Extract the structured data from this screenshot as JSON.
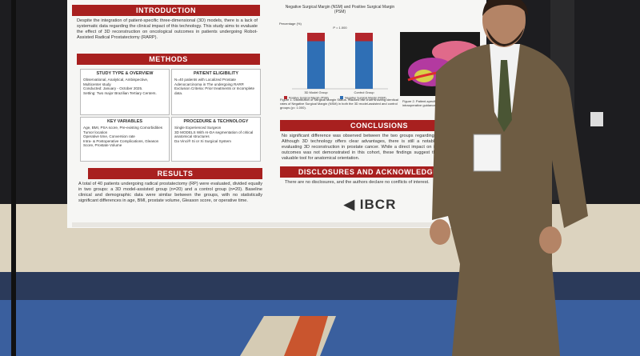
{
  "poster": {
    "introduction": {
      "heading": "INTRODUCTION",
      "text": "Despite the integration of patient-specific three-dimensional (3D) models, there is a lack of systematic data regarding the clinical impact of this technology. This study aims to evaluate the effect of 3D reconstruction on oncological outcomes in patients undergoing Robot-Assisted Radical Prostatectomy (RARP)."
    },
    "methods": {
      "heading": "METHODS",
      "boxes": [
        {
          "title": "STUDY TYPE & OVERVIEW",
          "lines": [
            "Observational, Analytical, Ambispective, Multicenter study",
            "Conducted: January - October 2025.",
            "Setting: Two major Brazilian Tertiary Centers."
          ]
        },
        {
          "title": "PATIENT ELIGIBILITY",
          "lines": [
            "N=40 patients with Localized Prostate Adenocarcinoma in The undergoing RARP.",
            "Exclusion Criteria: Prior treatments or Incomplete data."
          ]
        },
        {
          "title": "KEY VARIABLES",
          "lines": [
            "Age, BMI, PSA score, Pre-existing Comorbidities",
            "Tumor location",
            "Operative time, Conversion rate",
            "Intra- & Postoperative Complications, Gleason Score, Prostate Volume"
          ]
        },
        {
          "title": "PROCEDURE & TECHNOLOGY",
          "lines": [
            "Single Experienced Surgeon",
            "3D MODELS With AI-DA segmentation of critical anatomical structures",
            "Da Vinci® Si or Xi Surgical System"
          ]
        }
      ]
    },
    "results": {
      "heading": "RESULTS",
      "text": "A total of 40 patients undergoing radical prostatectomy (RP) were evaluated, divided equally in two groups: a 3D model-assisted group (n=20) and a control group (n=20). Baseline clinical and demographic data were similar between the groups, with no statistically significant differences in age, BMI, prostate volume, Gleason score, or operative time."
    },
    "chart": {
      "title": "Negative Surgical Margin (NSM) and Positive Surgical Margin (PSM)",
      "ylabel": "Percentage (%)",
      "p_value": "P = 1.000",
      "categories": [
        "3D Model Group",
        "Control Group"
      ],
      "ylim": [
        0,
        100
      ],
      "series": [
        {
          "name": "Positive Surgical Margin (PSM)",
          "color": "#b3262c",
          "values": [
            15,
            15
          ]
        },
        {
          "name": "Negative Surgical Margin (NSM)",
          "color": "#2f6fb5",
          "values": [
            85,
            85
          ]
        }
      ],
      "caption": "Figure 1. Distribution of Surgical Margin Status. Stacked bar chart showing identical rates of Negative Surgical Margin (NSM) in both the 3D model-assisted and control groups (p= 1.000).",
      "caption2": "Figure 2. Patient-specific 3D reconstruction, with its intraoperative guidance"
    },
    "conclusions": {
      "heading": "CONCLUSIONS",
      "text": "No significant difference was observed between the two groups regarding surgical margin rate. Although 3D technology offers clear advantages, there is still a notable scarcity of studies evaluating 3D reconstruction in prostate cancer. While a direct impact on immediate oncological outcomes was not demonstrated in this cohort, these findings suggest that 3D modeling is a valuable tool for anatomical orientation."
    },
    "disclosures": {
      "heading": "DISCLOSURES AND ACKNOWLEDGMENTS",
      "text": "There are no disclosures, and the authors declare no conflicts of interest."
    },
    "logo": "IBCR"
  }
}
